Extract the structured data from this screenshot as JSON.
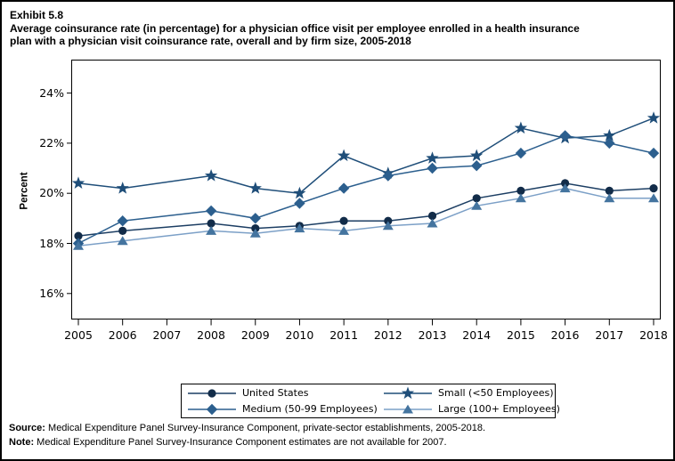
{
  "figure": {
    "exhibit_label": "Exhibit 5.8",
    "title_lines": [
      "Average coinsurance rate (in percentage) for a physician office visit per employee enrolled in a health insurance",
      "plan with a physician visit coinsurance rate, overall and by firm size, 2005-2018"
    ]
  },
  "chart_data": {
    "type": "line",
    "title": "Average coinsurance rate (in percentage) for a physician office visit per employee enrolled in a health insurance plan with a physician visit coinsurance rate, overall and by firm size, 2005-2018",
    "xlabel": "",
    "ylabel": "Percent",
    "x": [
      2005,
      2006,
      2007,
      2008,
      2009,
      2010,
      2011,
      2012,
      2013,
      2014,
      2015,
      2016,
      2017,
      2018
    ],
    "y_axis": {
      "ticks": [
        16,
        18,
        20,
        22,
        24
      ],
      "tick_labels": [
        "16%",
        "18%",
        "20%",
        "22%",
        "24%"
      ],
      "range_shown": [
        14.9,
        25.4
      ]
    },
    "grid": false,
    "legend_position": "bottom",
    "series": [
      {
        "name": "United States",
        "marker": "circle",
        "color": "#1C3E63",
        "marker_color": "#122C49",
        "values": [
          18.3,
          18.5,
          null,
          18.8,
          18.6,
          18.7,
          18.9,
          18.9,
          19.1,
          19.8,
          20.1,
          20.4,
          20.1,
          20.2
        ]
      },
      {
        "name": "Small (<50 Employees)",
        "marker": "star",
        "color": "#1F4E79",
        "marker_color": "#1F4E79",
        "values": [
          20.4,
          20.2,
          null,
          20.7,
          20.2,
          20.0,
          21.5,
          20.8,
          21.4,
          21.5,
          22.6,
          22.2,
          22.3,
          23.0
        ]
      },
      {
        "name": "Medium (50-99 Employees)",
        "marker": "diamond",
        "color": "#2C5F8E",
        "marker_color": "#2C5F8E",
        "values": [
          18.0,
          18.9,
          null,
          19.3,
          19.0,
          19.6,
          20.2,
          20.7,
          21.0,
          21.1,
          21.6,
          22.3,
          22.0,
          21.6
        ]
      },
      {
        "name": "Large (100+ Employees)",
        "marker": "triangle",
        "color": "#7CA0C7",
        "marker_color": "#44749F",
        "values": [
          17.9,
          18.1,
          null,
          18.5,
          18.4,
          18.6,
          18.5,
          18.7,
          18.8,
          19.5,
          19.8,
          20.2,
          19.8,
          19.8
        ]
      }
    ]
  },
  "footer": {
    "source_label": "Source:",
    "source_text": " Medical Expenditure Panel Survey-Insurance Component, private-sector establishments, 2005-2018.",
    "note_label": "Note:",
    "note_text": " Medical Expenditure Panel Survey-Insurance Component estimates are not available for 2007."
  }
}
